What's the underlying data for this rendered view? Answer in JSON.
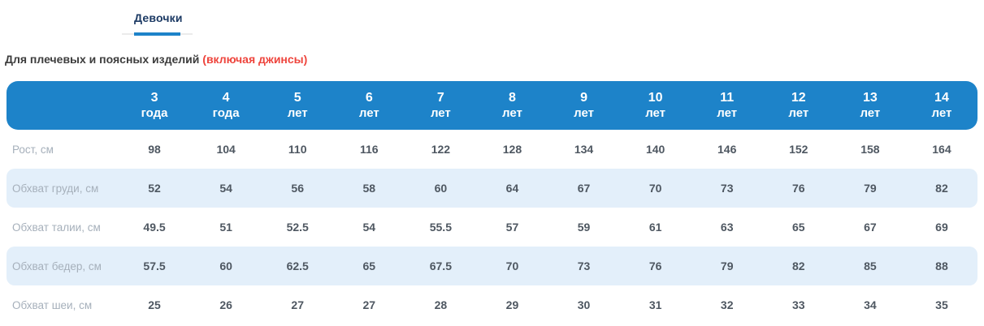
{
  "tabs": [
    {
      "label": "Девочки",
      "active": true
    }
  ],
  "subtitle": {
    "text": "Для плечевых и поясных изделий ",
    "highlight": "(включая джинсы)"
  },
  "table": {
    "columns": [
      {
        "num": "3",
        "unit": "года"
      },
      {
        "num": "4",
        "unit": "года"
      },
      {
        "num": "5",
        "unit": "лет"
      },
      {
        "num": "6",
        "unit": "лет"
      },
      {
        "num": "7",
        "unit": "лет"
      },
      {
        "num": "8",
        "unit": "лет"
      },
      {
        "num": "9",
        "unit": "лет"
      },
      {
        "num": "10",
        "unit": "лет"
      },
      {
        "num": "11",
        "unit": "лет"
      },
      {
        "num": "12",
        "unit": "лет"
      },
      {
        "num": "13",
        "unit": "лет"
      },
      {
        "num": "14",
        "unit": "лет"
      }
    ],
    "rows": [
      {
        "label": "Рост, см",
        "values": [
          "98",
          "104",
          "110",
          "116",
          "122",
          "128",
          "134",
          "140",
          "146",
          "152",
          "158",
          "164"
        ]
      },
      {
        "label": "Обхват груди, см",
        "values": [
          "52",
          "54",
          "56",
          "58",
          "60",
          "64",
          "67",
          "70",
          "73",
          "76",
          "79",
          "82"
        ]
      },
      {
        "label": "Обхват талии, см",
        "values": [
          "49.5",
          "51",
          "52.5",
          "54",
          "55.5",
          "57",
          "59",
          "61",
          "63",
          "65",
          "67",
          "69"
        ]
      },
      {
        "label": "Обхват бедер, см",
        "values": [
          "57.5",
          "60",
          "62.5",
          "65",
          "67.5",
          "70",
          "73",
          "76",
          "79",
          "82",
          "85",
          "88"
        ]
      },
      {
        "label": "Обхват шеи, см",
        "values": [
          "25",
          "26",
          "27",
          "27",
          "28",
          "29",
          "30",
          "31",
          "32",
          "33",
          "34",
          "35"
        ]
      }
    ]
  },
  "colors": {
    "header_bg": "#1d83c9",
    "row_alt_bg": "#e3effa",
    "tab_text": "#1c3a64",
    "tab_underline": "#1d83c9",
    "label_text": "#a6b0bb",
    "value_text": "#4e5761",
    "subtitle_text": "#3d3d3d",
    "highlight_text": "#ee443c"
  }
}
